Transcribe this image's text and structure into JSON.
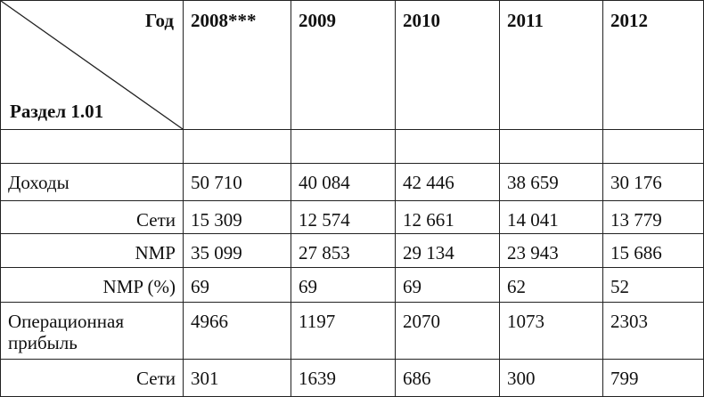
{
  "header": {
    "year_label": "Год",
    "section_label": "Раздел 1.01",
    "years": [
      "2008***",
      "2009",
      "2010",
      "2011",
      "2012"
    ]
  },
  "rows": [
    {
      "label": "Доходы",
      "values": [
        "50 710",
        "40 084",
        "42 446",
        "38 659",
        "30 176"
      ]
    },
    {
      "label": "Сети",
      "values": [
        "15 309",
        "12 574",
        "12 661",
        "14 041",
        "13 779"
      ]
    },
    {
      "label": "NMP",
      "values": [
        "35 099",
        "27 853",
        "29 134",
        "23 943",
        "15 686"
      ]
    },
    {
      "label": "NMP (%)",
      "values": [
        "69",
        "69",
        "69",
        "62",
        "52"
      ]
    },
    {
      "label": "Операционная прибыль",
      "values": [
        "4966",
        "1197",
        "2070",
        "1073",
        "2303"
      ]
    },
    {
      "label": "Сети",
      "values": [
        "301",
        "1639",
        "686",
        "300",
        "799"
      ]
    }
  ]
}
